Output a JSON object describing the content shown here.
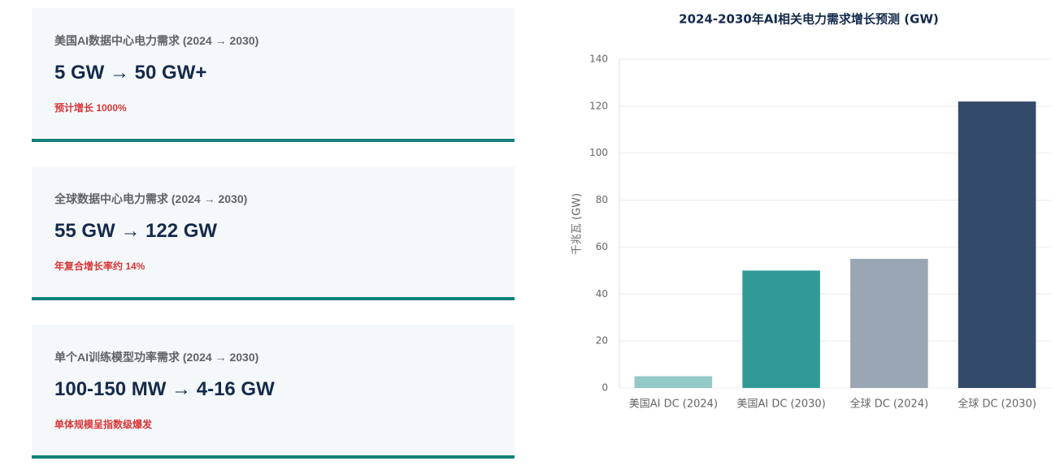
{
  "cards": [
    {
      "title": "美国AI数据中心电力需求 (2024 → 2030)",
      "value": "5 GW → 50 GW+",
      "note": "预计增长 1000%"
    },
    {
      "title": "全球数据中心电力需求 (2024 → 2030)",
      "value": "55 GW → 122 GW",
      "note": "年复合增长率约 14%"
    },
    {
      "title": "单个AI训练模型功率需求 (2024 → 2030)",
      "value": "100-150 MW → 4-16 GW",
      "note": "单体规模呈指数级爆发"
    }
  ],
  "chart_data": {
    "type": "bar",
    "title": "2024-2030年AI相关电力需求增长预测 (GW)",
    "y_label": "千兆瓦 (GW)",
    "categories": [
      "美国AI DC (2024)",
      "美国AI DC (2030)",
      "全球 DC (2024)",
      "全球 DC (2030)"
    ],
    "values": [
      5,
      50,
      55,
      122
    ],
    "colors": [
      "#93c9c6",
      "#319a97",
      "#9aa6b4",
      "#344a6a"
    ],
    "ylim": [
      0,
      140
    ],
    "yticks": [
      0,
      20,
      40,
      60,
      80,
      100,
      120,
      140
    ],
    "grid": true
  }
}
